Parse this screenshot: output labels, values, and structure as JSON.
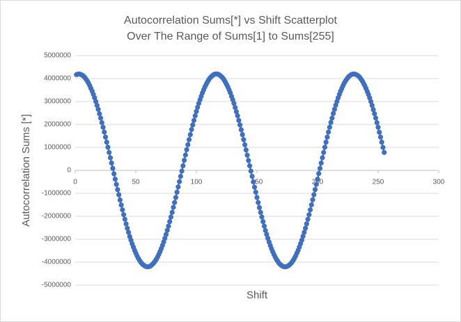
{
  "chart_data": {
    "type": "scatter",
    "title": "Autocorrelation Sums[*] vs Shift Scatterplot",
    "subtitle": "Over The Range of Sums[1] to Sums[255]",
    "x_label": "Shift",
    "y_label": "Autocorrelation Sums [*]",
    "xlim": [
      0,
      300
    ],
    "xticks": [
      0,
      50,
      100,
      150,
      200,
      250,
      300
    ],
    "ylim": [
      -5000000,
      5000000
    ],
    "yticks": [
      5000000,
      4000000,
      3000000,
      2000000,
      1000000,
      0,
      -1000000,
      -2000000,
      -3000000,
      -4000000,
      -5000000
    ],
    "grid": true,
    "series": [
      {
        "color": "#3f6fbf",
        "x": [
          1,
          2,
          3,
          4,
          5,
          6,
          7,
          8,
          9,
          10,
          11,
          12,
          13,
          14,
          15,
          16,
          17,
          18,
          19,
          20,
          21,
          22,
          23,
          24,
          25,
          26,
          27,
          28,
          29,
          30,
          31,
          32,
          33,
          34,
          35,
          36,
          37,
          38,
          39,
          40,
          41,
          42,
          43,
          44,
          45,
          46,
          47,
          48,
          49,
          50,
          51,
          52,
          53,
          54,
          55,
          56,
          57,
          58,
          59,
          60,
          61,
          62,
          63,
          64,
          65,
          66,
          67,
          68,
          69,
          70,
          71,
          72,
          73,
          74,
          75,
          76,
          77,
          78,
          79,
          80,
          81,
          82,
          83,
          84,
          85,
          86,
          87,
          88,
          89,
          90,
          91,
          92,
          93,
          94,
          95,
          96,
          97,
          98,
          99,
          100,
          101,
          102,
          103,
          104,
          105,
          106,
          107,
          108,
          109,
          110,
          111,
          112,
          113,
          114,
          115,
          116,
          117,
          118,
          119,
          120,
          121,
          122,
          123,
          124,
          125,
          126,
          127,
          128,
          129,
          130,
          131,
          132,
          133,
          134,
          135,
          136,
          137,
          138,
          139,
          140,
          141,
          142,
          143,
          144,
          145,
          146,
          147,
          148,
          149,
          150,
          151,
          152,
          153,
          154,
          155,
          156,
          157,
          158,
          159,
          160,
          161,
          162,
          163,
          164,
          165,
          166,
          167,
          168,
          169,
          170,
          171,
          172,
          173,
          174,
          175,
          176,
          177,
          178,
          179,
          180,
          181,
          182,
          183,
          184,
          185,
          186,
          187,
          188,
          189,
          190,
          191,
          192,
          193,
          194,
          195,
          196,
          197,
          198,
          199,
          200,
          201,
          202,
          203,
          204,
          205,
          206,
          207,
          208,
          209,
          210,
          211,
          212,
          213,
          214,
          215,
          216,
          217,
          218,
          219,
          220,
          221,
          222,
          223,
          224,
          225,
          226,
          227,
          228,
          229,
          230,
          231,
          232,
          233,
          234,
          235,
          236,
          237,
          238,
          239,
          240,
          241,
          242,
          243,
          244,
          245,
          246,
          247,
          248,
          249,
          250,
          251,
          252,
          253,
          254,
          255
        ],
        "values": [
          4170000,
          4190000,
          4200000,
          4190000,
          4170000,
          4140000,
          4100000,
          4040000,
          3970000,
          3890000,
          3800000,
          3690000,
          3570000,
          3450000,
          3310000,
          3160000,
          3000000,
          2830000,
          2660000,
          2470000,
          2280000,
          2080000,
          1880000,
          1670000,
          1450000,
          1230000,
          1010000,
          780000,
          550000,
          320000,
          90000,
          -150000,
          -380000,
          -610000,
          -840000,
          -1060000,
          -1290000,
          -1510000,
          -1720000,
          -1930000,
          -2130000,
          -2330000,
          -2520000,
          -2700000,
          -2880000,
          -3040000,
          -3200000,
          -3340000,
          -3480000,
          -3600000,
          -3720000,
          -3820000,
          -3910000,
          -3990000,
          -4060000,
          -4110000,
          -4150000,
          -4180000,
          -4200000,
          -4200000,
          -4190000,
          -4170000,
          -4130000,
          -4080000,
          -4020000,
          -3950000,
          -3870000,
          -3770000,
          -3660000,
          -3540000,
          -3410000,
          -3270000,
          -3120000,
          -2960000,
          -2790000,
          -2610000,
          -2430000,
          -2230000,
          -2030000,
          -1830000,
          -1610000,
          -1400000,
          -1180000,
          -950000,
          -720000,
          -490000,
          -260000,
          -30000,
          200000,
          440000,
          670000,
          900000,
          1120000,
          1340000,
          1560000,
          1780000,
          1980000,
          2180000,
          2380000,
          2570000,
          2750000,
          2920000,
          3080000,
          3230000,
          3380000,
          3510000,
          3630000,
          3740000,
          3840000,
          3930000,
          4010000,
          4070000,
          4120000,
          4160000,
          4190000,
          4200000,
          4200000,
          4190000,
          4160000,
          4120000,
          4070000,
          4010000,
          3930000,
          3840000,
          3740000,
          3630000,
          3510000,
          3380000,
          3230000,
          3080000,
          2920000,
          2740000,
          2560000,
          2380000,
          2180000,
          1980000,
          1770000,
          1560000,
          1340000,
          1120000,
          890000,
          660000,
          430000,
          200000,
          -30000,
          -260000,
          -500000,
          -730000,
          -950000,
          -1180000,
          -1400000,
          -1620000,
          -1830000,
          -2030000,
          -2230000,
          -2430000,
          -2620000,
          -2790000,
          -2960000,
          -3120000,
          -3270000,
          -3410000,
          -3540000,
          -3660000,
          -3770000,
          -3870000,
          -3950000,
          -4030000,
          -4090000,
          -4130000,
          -4170000,
          -4190000,
          -4200000,
          -4200000,
          -4180000,
          -4150000,
          -4110000,
          -4060000,
          -3990000,
          -3910000,
          -3820000,
          -3720000,
          -3600000,
          -3480000,
          -3340000,
          -3190000,
          -3040000,
          -2870000,
          -2700000,
          -2520000,
          -2330000,
          -2130000,
          -1930000,
          -1720000,
          -1500000,
          -1280000,
          -1060000,
          -840000,
          -610000,
          -380000,
          -140000,
          90000,
          320000,
          550000,
          780000,
          1010000,
          1230000,
          1450000,
          1670000,
          1880000,
          2090000,
          2280000,
          2480000,
          2660000,
          2840000,
          3000000,
          3160000,
          3310000,
          3450000,
          3570000,
          3690000,
          3800000,
          3890000,
          3970000,
          4040000,
          4100000,
          4140000,
          4180000,
          4190000,
          4200000,
          4190000,
          4170000,
          4140000,
          4100000,
          4040000,
          3970000,
          3890000,
          3790000,
          3690000,
          3570000,
          3440000,
          3310000,
          3160000,
          3000000,
          2830000,
          2650000,
          2470000,
          2280000,
          2080000,
          1880000,
          1660000,
          1450000,
          1230000,
          1000000,
          780000
        ]
      }
    ]
  }
}
